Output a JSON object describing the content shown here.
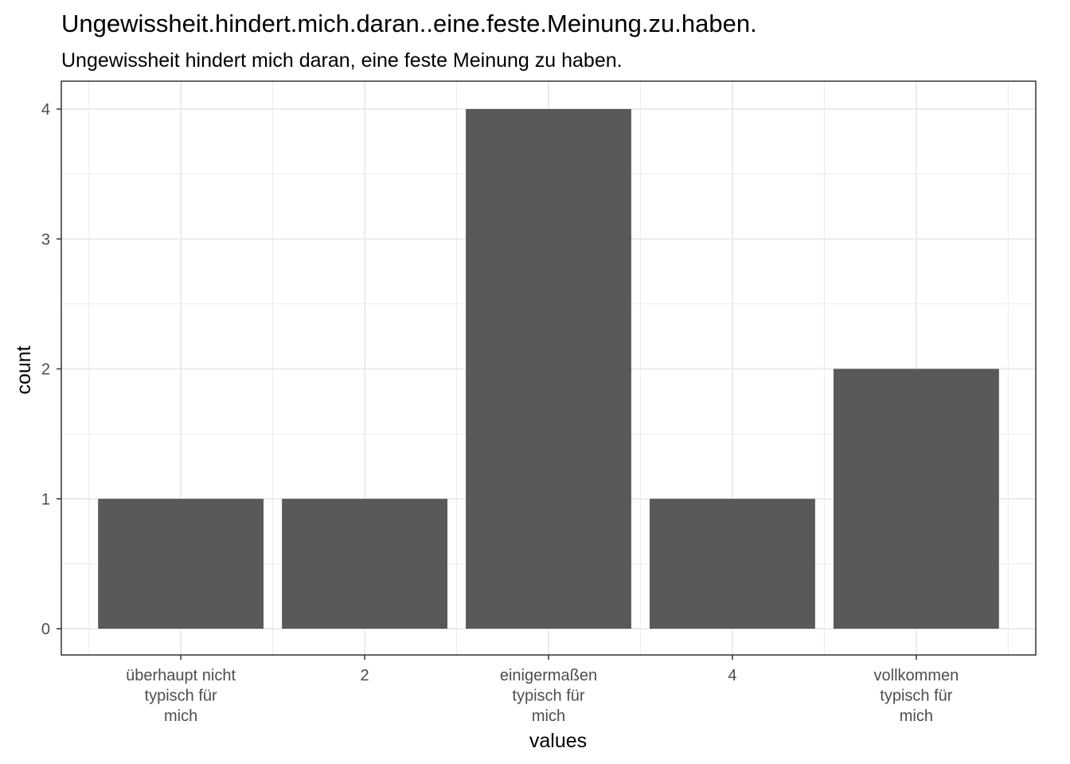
{
  "chart_data": {
    "type": "bar",
    "title": "Ungewissheit.hindert.mich.daran..eine.feste.Meinung.zu.haben.",
    "subtitle": "Ungewissheit hindert mich daran, eine feste Meinung zu haben.",
    "xlabel": "values",
    "ylabel": "count",
    "categories": [
      [
        "überhaupt nicht",
        "typisch für",
        "mich"
      ],
      [
        "2"
      ],
      [
        "einigermaßen",
        "typisch für",
        "mich"
      ],
      [
        "4"
      ],
      [
        "vollkommen",
        "typisch für",
        "mich"
      ]
    ],
    "values": [
      1,
      1,
      4,
      1,
      2
    ],
    "ylim": [
      0,
      4
    ],
    "yticks": [
      0,
      1,
      2,
      3,
      4
    ],
    "grid": true,
    "bar_color": "#595959",
    "grid_color": "#ebebeb",
    "panel_border_color": "#333333"
  }
}
